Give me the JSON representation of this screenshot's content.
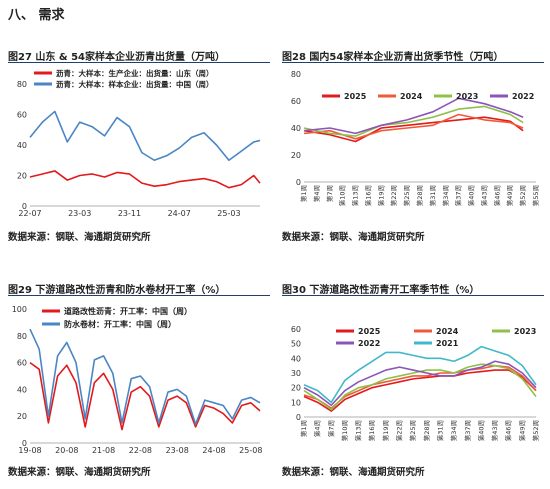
{
  "section": {
    "title": "八、 需求"
  },
  "figures": [
    {
      "title": "图27 山东 & 54家样本企业沥青出货量（万吨）",
      "source": "数据来源：钢联、海通期货研究所"
    },
    {
      "title": "图28 国内54家样本企业沥青出货季节性（万吨）",
      "source": "数据来源：钢联、海通期货研究所"
    },
    {
      "title": "图29 下游道路改性沥青和防水卷材开工率（%）",
      "source": "数据来源：钢联、海通期货研究所"
    },
    {
      "title": "图30 下游道路改性沥青开工率季节性（%）",
      "source": "数据来源：钢联、海通期货研究所"
    }
  ],
  "chart_data": [
    {
      "type": "line",
      "ylim": [
        0,
        80
      ],
      "yticks": [
        0,
        20,
        40,
        60,
        80
      ],
      "xticks": [
        "22-07",
        "23-03",
        "23-11",
        "24-07",
        "25-03"
      ],
      "xlim": [
        "22-07",
        "25-08"
      ],
      "series": [
        {
          "name": "沥青：大样本：生产企业：出货量：山东（周）",
          "color": "#e31a1c",
          "x": [
            "22-07",
            "22-09",
            "22-11",
            "23-01",
            "23-03",
            "23-05",
            "23-07",
            "23-09",
            "23-11",
            "24-01",
            "24-03",
            "24-05",
            "24-07",
            "24-09",
            "24-11",
            "25-01",
            "25-03",
            "25-05",
            "25-07",
            "25-08"
          ],
          "values": [
            19,
            21,
            23,
            17,
            20,
            21,
            19,
            22,
            21,
            15,
            13,
            14,
            16,
            17,
            18,
            16,
            12,
            14,
            20,
            15
          ]
        },
        {
          "name": "沥青：大样本：样本企业：出货量：中国（周）",
          "color": "#4a86c5",
          "x": [
            "22-07",
            "22-09",
            "22-11",
            "23-01",
            "23-03",
            "23-05",
            "23-07",
            "23-09",
            "23-11",
            "24-01",
            "24-03",
            "24-05",
            "24-07",
            "24-09",
            "24-11",
            "25-01",
            "25-03",
            "25-05",
            "25-07",
            "25-08"
          ],
          "values": [
            45,
            55,
            62,
            42,
            55,
            52,
            46,
            58,
            52,
            35,
            30,
            33,
            38,
            45,
            48,
            40,
            30,
            36,
            42,
            43
          ]
        }
      ]
    },
    {
      "type": "line",
      "ylim": [
        0,
        80
      ],
      "yticks": [
        0,
        20,
        40,
        60,
        80
      ],
      "xticks": [
        "第1周",
        "第4周",
        "第7周",
        "第10周",
        "第13周",
        "第16周",
        "第19周",
        "第22周",
        "第25周",
        "第28周",
        "第31周",
        "第34周",
        "第37周",
        "第40周",
        "第43周",
        "第46周",
        "第49周",
        "第52周",
        "第55周"
      ],
      "x_weeks": [
        1,
        7,
        13,
        19,
        25,
        31,
        37,
        43,
        49,
        52
      ],
      "series": [
        {
          "name": "2025",
          "color": "#e31a1c",
          "values": [
            38,
            35,
            30,
            40,
            42,
            44,
            46,
            48,
            45,
            38
          ]
        },
        {
          "name": "2024",
          "color": "#ef5b3a",
          "values": [
            36,
            38,
            32,
            38,
            40,
            42,
            50,
            46,
            44,
            40
          ]
        },
        {
          "name": "2023",
          "color": "#8fc04a",
          "values": [
            40,
            36,
            34,
            42,
            44,
            48,
            54,
            56,
            50,
            44
          ]
        },
        {
          "name": "2022",
          "color": "#8a55b8",
          "values": [
            38,
            40,
            36,
            42,
            46,
            52,
            62,
            58,
            52,
            48
          ]
        }
      ]
    },
    {
      "type": "line",
      "ylim": [
        0,
        100
      ],
      "yticks": [
        0,
        20,
        40,
        60,
        80,
        100
      ],
      "xticks": [
        "19-08",
        "20-08",
        "21-08",
        "22-08",
        "23-08",
        "24-08",
        "25-08"
      ],
      "xlim": [
        "19-08",
        "25-11"
      ],
      "series": [
        {
          "name": "道路改性沥青：开工率：中国（周）",
          "color": "#e31a1c",
          "x": [
            "19-08",
            "19-11",
            "20-02",
            "20-05",
            "20-08",
            "20-11",
            "21-02",
            "21-05",
            "21-08",
            "21-11",
            "22-02",
            "22-05",
            "22-08",
            "22-11",
            "23-02",
            "23-05",
            "23-08",
            "23-11",
            "24-02",
            "24-05",
            "24-08",
            "24-11",
            "25-02",
            "25-05",
            "25-08",
            "25-11"
          ],
          "values": [
            60,
            55,
            15,
            50,
            58,
            45,
            12,
            45,
            52,
            40,
            10,
            38,
            42,
            35,
            12,
            32,
            35,
            30,
            12,
            28,
            26,
            22,
            15,
            28,
            30,
            24
          ]
        },
        {
          "name": "防水卷材：开工率：中国（周）",
          "color": "#4a86c5",
          "x": [
            "19-08",
            "19-11",
            "20-02",
            "20-05",
            "20-08",
            "20-11",
            "21-02",
            "21-05",
            "21-08",
            "21-11",
            "22-02",
            "22-05",
            "22-08",
            "22-11",
            "23-02",
            "23-05",
            "23-08",
            "23-11",
            "24-02",
            "24-05",
            "24-08",
            "24-11",
            "25-02",
            "25-05",
            "25-08",
            "25-11"
          ],
          "values": [
            85,
            70,
            20,
            65,
            75,
            60,
            18,
            62,
            65,
            52,
            15,
            48,
            50,
            42,
            15,
            38,
            40,
            35,
            14,
            32,
            30,
            28,
            18,
            32,
            34,
            30
          ]
        }
      ]
    },
    {
      "type": "line",
      "ylim": [
        0,
        60
      ],
      "yticks": [
        0,
        10,
        20,
        30,
        40,
        50,
        60
      ],
      "xticks": [
        "第1周",
        "第4周",
        "第7周",
        "第10周",
        "第13周",
        "第16周",
        "第19周",
        "第22周",
        "第25周",
        "第28周",
        "第31周",
        "第34周",
        "第37周",
        "第40周",
        "第43周",
        "第46周",
        "第49周",
        "第52周"
      ],
      "x_weeks": [
        1,
        4,
        7,
        10,
        13,
        16,
        19,
        22,
        25,
        28,
        31,
        34,
        37,
        40,
        43,
        46,
        49,
        52
      ],
      "series": [
        {
          "name": "2025",
          "color": "#e31a1c",
          "values": [
            14,
            10,
            4,
            12,
            16,
            20,
            22,
            24,
            26,
            27,
            28,
            28,
            30,
            31,
            32,
            32,
            27,
            18
          ]
        },
        {
          "name": "2024",
          "color": "#ef5b3a",
          "values": [
            15,
            12,
            6,
            14,
            18,
            22,
            24,
            26,
            28,
            28,
            30,
            30,
            32,
            33,
            35,
            34,
            28,
            18
          ]
        },
        {
          "name": "2023",
          "color": "#8fc04a",
          "values": [
            18,
            12,
            5,
            15,
            20,
            22,
            26,
            28,
            30,
            32,
            32,
            30,
            34,
            36,
            35,
            33,
            26,
            14
          ]
        },
        {
          "name": "2022",
          "color": "#8a55b8",
          "values": [
            20,
            15,
            8,
            18,
            24,
            28,
            32,
            34,
            32,
            30,
            28,
            28,
            32,
            34,
            38,
            36,
            30,
            20
          ]
        },
        {
          "name": "2021",
          "color": "#41b8c9",
          "values": [
            22,
            18,
            10,
            25,
            32,
            38,
            44,
            44,
            42,
            40,
            40,
            38,
            42,
            48,
            45,
            42,
            35,
            22
          ]
        }
      ]
    }
  ]
}
